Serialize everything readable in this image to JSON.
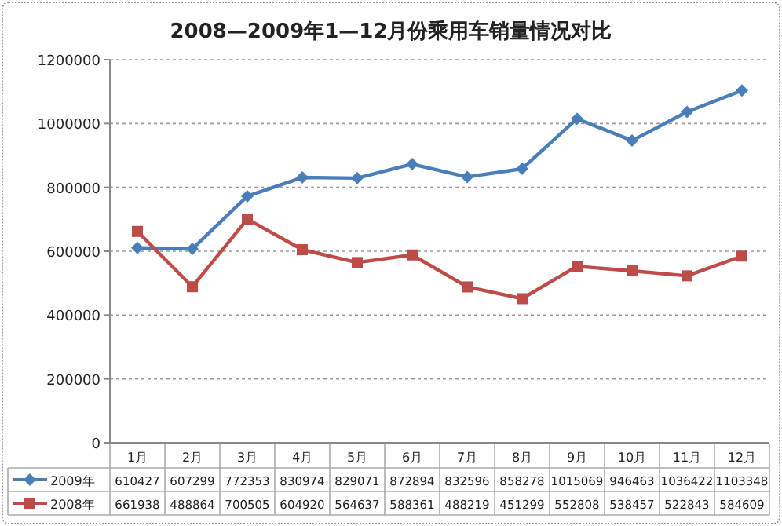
{
  "chart_data": {
    "type": "line",
    "title": "2008—2009年1—12月份乘用车销量情况对比",
    "categories": [
      "1月",
      "2月",
      "3月",
      "4月",
      "5月",
      "6月",
      "7月",
      "8月",
      "9月",
      "10月",
      "11月",
      "12月"
    ],
    "series": [
      {
        "name": "2009年",
        "color": "#4a7ebb",
        "marker": "diamond",
        "values": [
          610427,
          607299,
          772353,
          830974,
          829071,
          872894,
          832596,
          858278,
          1015069,
          946463,
          1036422,
          1103348
        ]
      },
      {
        "name": "2008年",
        "color": "#be4b48",
        "marker": "square",
        "values": [
          661938,
          488864,
          700505,
          604920,
          564637,
          588361,
          488219,
          451299,
          552808,
          538457,
          522843,
          584609
        ]
      }
    ],
    "ylim": [
      0,
      1200000
    ],
    "yticks": [
      0,
      200000,
      400000,
      600000,
      800000,
      1000000,
      1200000
    ],
    "grid": "y",
    "legend": "bottom left",
    "data_labels": true
  }
}
